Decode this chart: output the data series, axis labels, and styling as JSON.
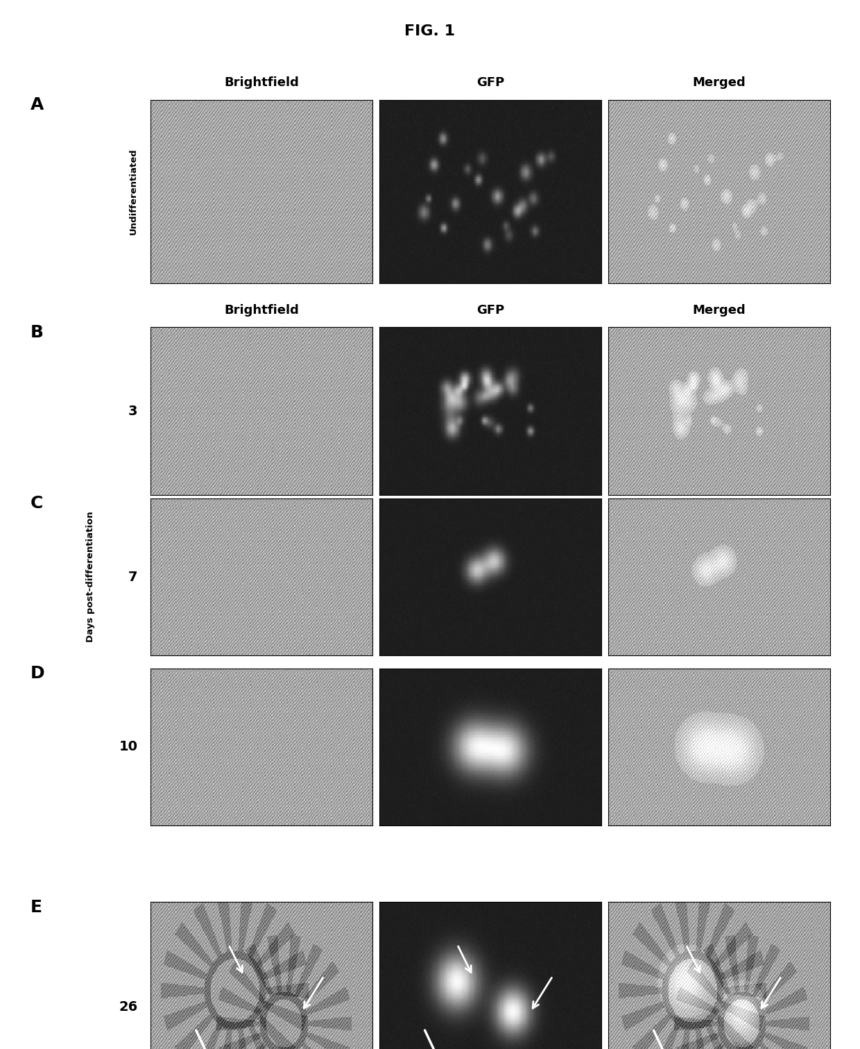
{
  "title": "FIG. 1",
  "title_fontsize": 16,
  "title_fontweight": "bold",
  "background_color": "#ffffff",
  "panel_labels": [
    "A",
    "B",
    "C",
    "D",
    "E"
  ],
  "row_label_undiff": "Undifferentiated",
  "row_label_days": "Days post-differentiation",
  "col_labels_A": [
    "Brightfield",
    "GFP",
    "Merged"
  ],
  "col_labels_B": [
    "Brightfield",
    "GFP",
    "Merged"
  ],
  "day_labels": [
    "3",
    "7",
    "10",
    "26"
  ],
  "label_fontsize": 14,
  "panel_label_fontsize": 18,
  "col_label_fontsize": 13,
  "brightfield_base": 185,
  "gfp_base": 30,
  "merged_base": 170
}
